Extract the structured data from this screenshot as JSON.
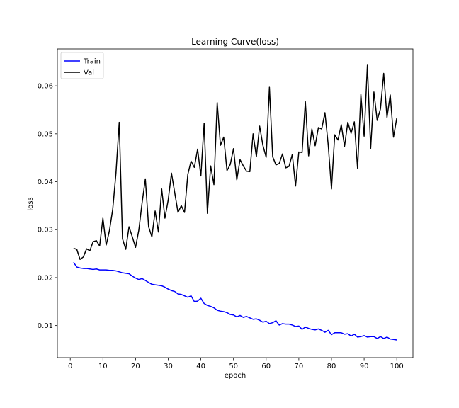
{
  "chart_data": {
    "type": "line",
    "title": "Learning Curve(loss)",
    "xlabel": "epoch",
    "ylabel": "loss",
    "xlim": [
      -3.95,
      104.95
    ],
    "ylim": [
      0.0033,
      0.0677
    ],
    "xticks": [
      0,
      10,
      20,
      30,
      40,
      50,
      60,
      70,
      80,
      90,
      100
    ],
    "yticks": [
      0.01,
      0.02,
      0.03,
      0.04,
      0.05,
      0.06
    ],
    "ytick_labels": [
      "0.01",
      "0.02",
      "0.03",
      "0.04",
      "0.05",
      "0.06"
    ],
    "grid": false,
    "legend_position": "top-left",
    "x": [
      1,
      2,
      3,
      4,
      5,
      6,
      7,
      8,
      9,
      10,
      11,
      12,
      13,
      14,
      15,
      16,
      17,
      18,
      19,
      20,
      21,
      22,
      23,
      24,
      25,
      26,
      27,
      28,
      29,
      30,
      31,
      32,
      33,
      34,
      35,
      36,
      37,
      38,
      39,
      40,
      41,
      42,
      43,
      44,
      45,
      46,
      47,
      48,
      49,
      50,
      51,
      52,
      53,
      54,
      55,
      56,
      57,
      58,
      59,
      60,
      61,
      62,
      63,
      64,
      65,
      66,
      67,
      68,
      69,
      70,
      71,
      72,
      73,
      74,
      75,
      76,
      77,
      78,
      79,
      80,
      81,
      82,
      83,
      84,
      85,
      86,
      87,
      88,
      89,
      90,
      91,
      92,
      93,
      94,
      95,
      96,
      97,
      98,
      99,
      100
    ],
    "series": [
      {
        "name": "Train",
        "color": "#0000ff",
        "values": [
          0.0232,
          0.0222,
          0.022,
          0.0219,
          0.0219,
          0.0218,
          0.0217,
          0.0218,
          0.0216,
          0.0216,
          0.0216,
          0.0215,
          0.0215,
          0.0214,
          0.0212,
          0.021,
          0.0209,
          0.0208,
          0.0203,
          0.0199,
          0.0196,
          0.0198,
          0.0194,
          0.019,
          0.0186,
          0.0185,
          0.0184,
          0.0183,
          0.018,
          0.0176,
          0.0173,
          0.0171,
          0.0166,
          0.0165,
          0.0162,
          0.0159,
          0.0162,
          0.015,
          0.0151,
          0.0157,
          0.0146,
          0.0142,
          0.014,
          0.0137,
          0.0132,
          0.013,
          0.0129,
          0.0127,
          0.0123,
          0.0122,
          0.0118,
          0.0121,
          0.0117,
          0.0119,
          0.0116,
          0.0113,
          0.0114,
          0.0111,
          0.0107,
          0.0109,
          0.0104,
          0.0106,
          0.011,
          0.0101,
          0.0104,
          0.0103,
          0.0103,
          0.0101,
          0.0098,
          0.0099,
          0.0092,
          0.0097,
          0.0094,
          0.0092,
          0.0091,
          0.0093,
          0.009,
          0.0086,
          0.009,
          0.0081,
          0.0085,
          0.0085,
          0.0085,
          0.0082,
          0.0083,
          0.0078,
          0.0082,
          0.0076,
          0.0077,
          0.0079,
          0.0076,
          0.0077,
          0.0077,
          0.0073,
          0.0077,
          0.0073,
          0.0076,
          0.0072,
          0.0071,
          0.007
        ]
      },
      {
        "name": "Val",
        "color": "#000000",
        "values": [
          0.0261,
          0.0259,
          0.0238,
          0.0243,
          0.026,
          0.0256,
          0.0275,
          0.0277,
          0.0266,
          0.0324,
          0.0268,
          0.0298,
          0.0342,
          0.0418,
          0.0524,
          0.0281,
          0.0259,
          0.0306,
          0.0285,
          0.0263,
          0.0299,
          0.0356,
          0.0406,
          0.0306,
          0.0285,
          0.0339,
          0.0295,
          0.0385,
          0.0324,
          0.0362,
          0.0418,
          0.0377,
          0.0336,
          0.035,
          0.0336,
          0.0415,
          0.0443,
          0.043,
          0.0468,
          0.0412,
          0.0522,
          0.0334,
          0.0433,
          0.0394,
          0.0565,
          0.0476,
          0.0493,
          0.0423,
          0.0436,
          0.0469,
          0.0404,
          0.0446,
          0.0433,
          0.0422,
          0.0421,
          0.05,
          0.0452,
          0.0516,
          0.0476,
          0.0451,
          0.0597,
          0.0452,
          0.0435,
          0.0438,
          0.0458,
          0.0429,
          0.0432,
          0.0457,
          0.0391,
          0.0462,
          0.0461,
          0.0567,
          0.0454,
          0.051,
          0.0475,
          0.0513,
          0.051,
          0.0544,
          0.0477,
          0.0385,
          0.0498,
          0.0487,
          0.0519,
          0.0474,
          0.0524,
          0.0501,
          0.0525,
          0.0427,
          0.0582,
          0.0495,
          0.0643,
          0.0469,
          0.0587,
          0.0528,
          0.0552,
          0.0626,
          0.0534,
          0.0581,
          0.0493,
          0.0533
        ]
      }
    ]
  }
}
